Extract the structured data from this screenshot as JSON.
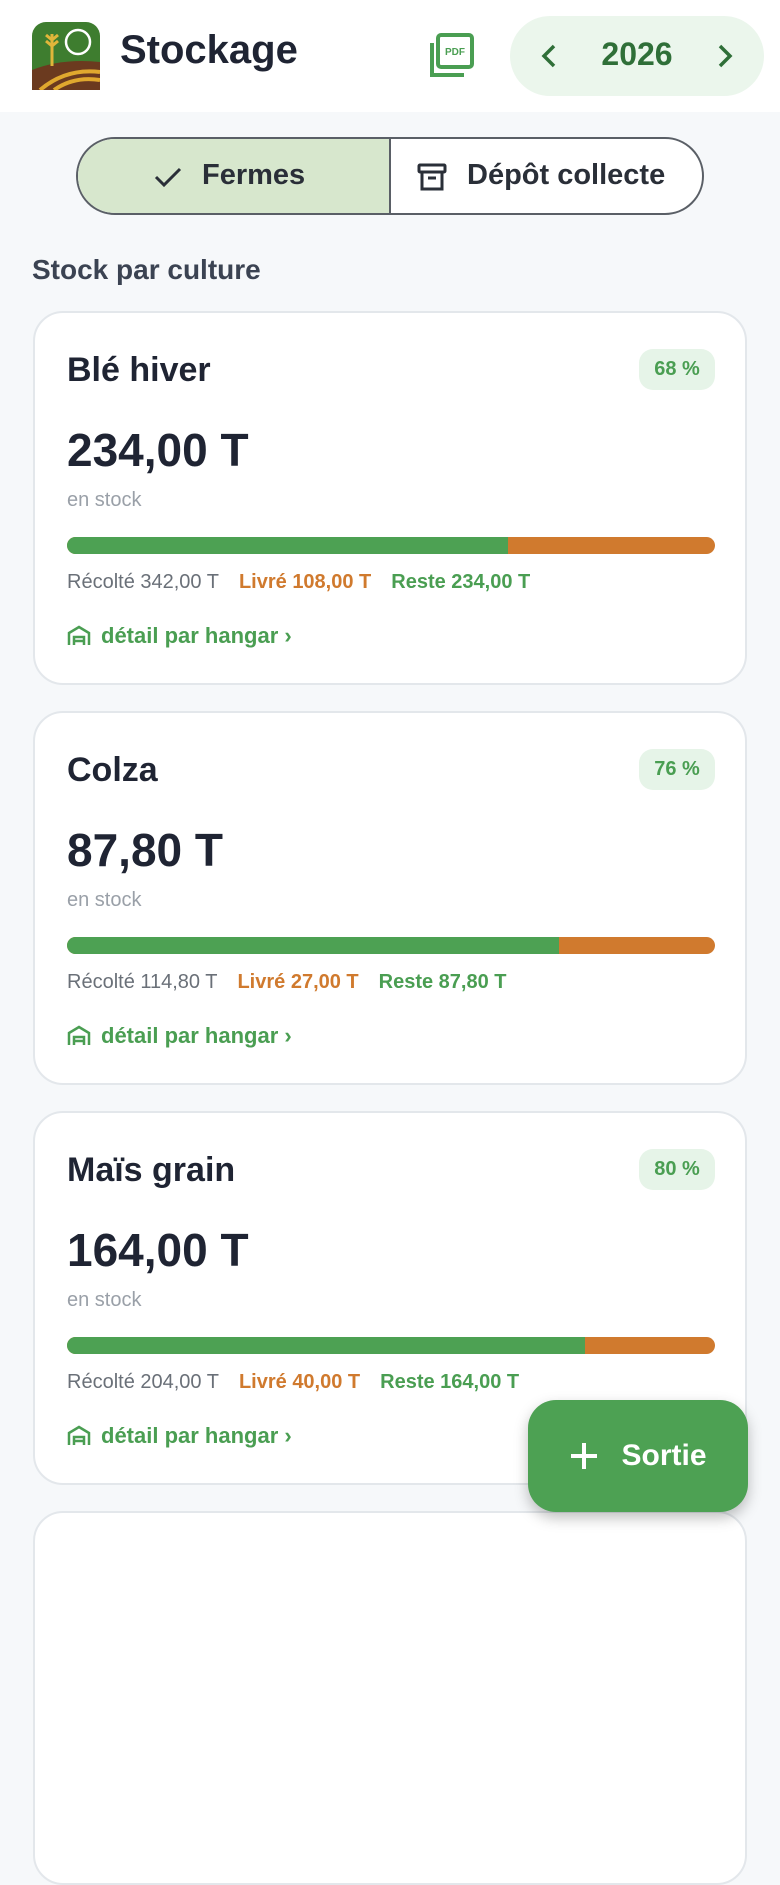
{
  "header": {
    "title": "Stockage",
    "year": "2026"
  },
  "tabs": [
    "Fermes",
    "Dépôt collecte"
  ],
  "section_title": "Stock par culture",
  "cards": [
    {
      "name": "Blé hiver",
      "percent": {
        "value": 68,
        "label": "68 %"
      },
      "stock": "234,00 T",
      "stock_label": "en stock",
      "harvested": "Récolté 342,00 T",
      "delivered": "Livré 108,00 T",
      "remaining": "Reste 234,00 T",
      "link": "détail par hangar ›"
    },
    {
      "name": "Colza",
      "percent": {
        "value": 76,
        "label": "76 %"
      },
      "stock": "87,80 T",
      "stock_label": "en stock",
      "harvested": "Récolté 114,80 T",
      "delivered": "Livré 27,00 T",
      "remaining": "Reste 87,80 T",
      "link": "détail par hangar ›"
    },
    {
      "name": "Maïs grain",
      "percent": {
        "value": 80,
        "label": "80 %"
      },
      "stock": "164,00 T",
      "stock_label": "en stock",
      "harvested": "Récolté 204,00 T",
      "delivered": "Livré 40,00 T",
      "remaining": "Reste 164,00 T",
      "link": "détail par hangar ›"
    }
  ],
  "fab": "Sortie"
}
